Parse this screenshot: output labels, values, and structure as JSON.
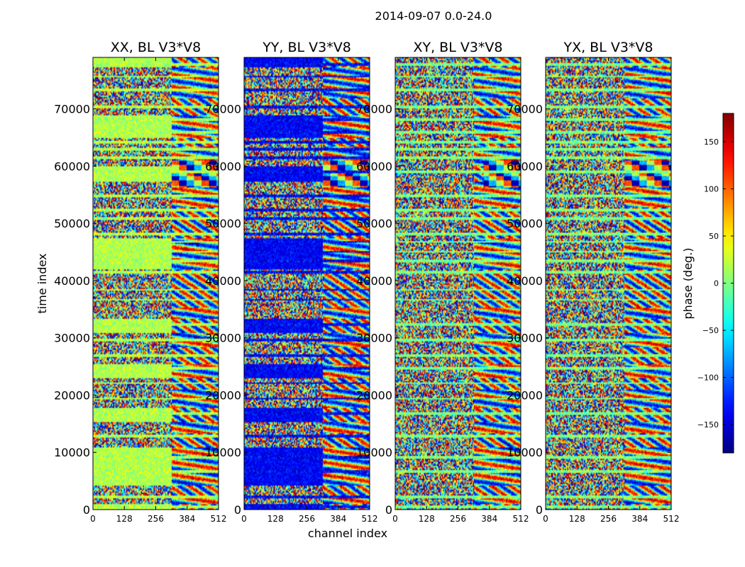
{
  "suptitle": "2014-09-07 0.0-24.0",
  "chart_data": {
    "type": "heatmap",
    "panels": [
      {
        "title": "XX, BL V3*V8",
        "key": "XX"
      },
      {
        "title": "YY, BL V3*V8",
        "key": "YY"
      },
      {
        "title": "XY, BL V3*V8",
        "key": "XY"
      },
      {
        "title": "YX, BL V3*V8",
        "key": "YX"
      }
    ],
    "xlabel": "channel index",
    "ylabel": "time index",
    "xlim": [
      0,
      512
    ],
    "ylim": [
      0,
      79000
    ],
    "xticks": [
      0,
      128,
      256,
      384,
      512
    ],
    "yticks": [
      0,
      10000,
      20000,
      30000,
      40000,
      50000,
      60000,
      70000
    ],
    "colorbar": {
      "label": "phase (deg.)",
      "range": [
        -180,
        180
      ],
      "ticks": [
        -150,
        -100,
        -50,
        0,
        50,
        100,
        150
      ],
      "tick_labels": [
        "−150",
        "−100",
        "−50",
        "0",
        "50",
        "100",
        "150"
      ],
      "colormap": "jet"
    },
    "regions": {
      "band_channel_split": 320,
      "band_change_times": [
        1000,
        2500,
        4200,
        11000,
        13500,
        15500,
        18000,
        21000,
        23000,
        25500,
        28500,
        31000,
        33500,
        35500,
        42000,
        47500,
        53000,
        57500,
        60000,
        63500,
        65000,
        69000,
        72000,
        77500
      ],
      "stripe_times": [
        700,
        2300,
        6800,
        9200,
        13000,
        17000,
        19500,
        22200,
        24800,
        27100,
        29800,
        32400,
        36800,
        38500,
        41600,
        43500,
        45200,
        46900,
        48300,
        50900,
        52400,
        55000,
        59100,
        61500,
        63100,
        64300,
        66100,
        68200,
        70500,
        73400,
        75800,
        77900
      ]
    }
  }
}
